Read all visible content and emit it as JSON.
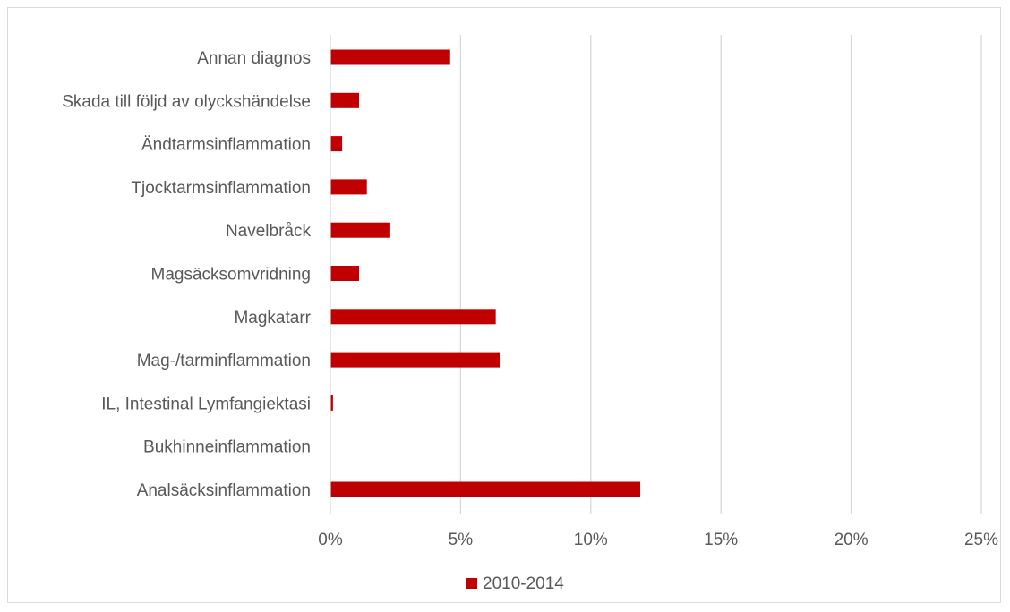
{
  "chart_data": {
    "type": "bar",
    "orientation": "horizontal",
    "categories": [
      "Annan diagnos",
      "Skada till följd av olyckshändelse",
      "Ändtarmsinflammation",
      "Tjocktarmsinflammation",
      "Navelbråck",
      "Magsäcksomvridning",
      "Magkatarr",
      "Mag-/tarminflammation",
      "IL, Intestinal Lymfangiektasi",
      "Bukhinneinflammation",
      "Analsäcksinflammation"
    ],
    "series": [
      {
        "name": "2010-2014",
        "color": "#c00000",
        "values": [
          4.6,
          1.1,
          0.45,
          1.4,
          2.3,
          1.1,
          6.35,
          6.5,
          0.1,
          0,
          11.9
        ]
      }
    ],
    "xlim": [
      0,
      25
    ],
    "x_ticks": [
      0,
      5,
      10,
      15,
      20,
      25
    ],
    "x_tick_labels": [
      "0%",
      "5%",
      "10%",
      "15%",
      "20%",
      "25%"
    ],
    "grid": "vertical",
    "legend": "bottom",
    "title": "",
    "xlabel": "",
    "ylabel": ""
  }
}
